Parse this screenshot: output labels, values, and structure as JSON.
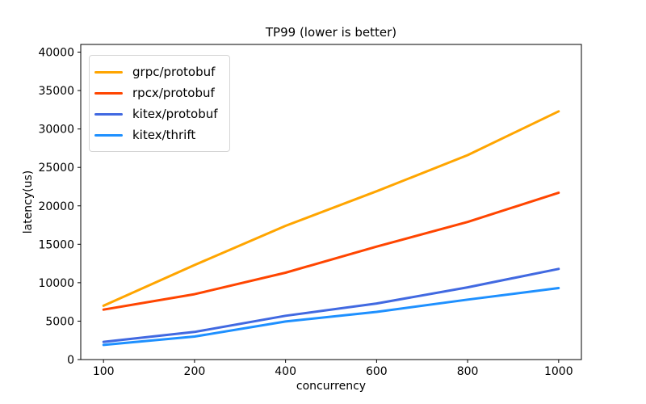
{
  "chart_data": {
    "type": "line",
    "title": "TP99 (lower is better)",
    "xlabel": "concurrency",
    "ylabel": "latency(us)",
    "x": [
      100,
      200,
      400,
      600,
      800,
      1000
    ],
    "x_tick_labels": [
      "100",
      "200",
      "400",
      "600",
      "800",
      "1000"
    ],
    "x_spacing": "categorical-equal",
    "yticks": [
      0,
      5000,
      10000,
      15000,
      20000,
      25000,
      30000,
      35000,
      40000
    ],
    "ylim": [
      0,
      41000
    ],
    "grid": false,
    "legend_position": "upper-left",
    "axis_color": "#000000",
    "text_color": "#000000",
    "series": [
      {
        "name": "grpc/protobuf",
        "color": "#FFA500",
        "values": [
          7000,
          12300,
          17400,
          21900,
          26600,
          32300
        ]
      },
      {
        "name": "rpcx/protobuf",
        "color": "#FF4500",
        "values": [
          6500,
          8500,
          11300,
          14700,
          17900,
          21700
        ]
      },
      {
        "name": "kitex/protobuf",
        "color": "#4169E1",
        "values": [
          2300,
          3600,
          5700,
          7300,
          9400,
          11800
        ]
      },
      {
        "name": "kitex/thrift",
        "color": "#1E90FF",
        "values": [
          1900,
          3000,
          4950,
          6200,
          7800,
          9300
        ]
      }
    ]
  }
}
